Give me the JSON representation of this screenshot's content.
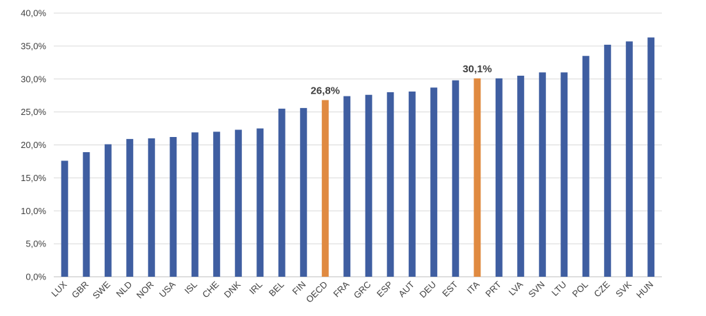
{
  "chart_data": {
    "type": "bar",
    "title": "",
    "xlabel": "",
    "ylabel": "",
    "ylim": [
      0,
      40
    ],
    "ytick_step": 5,
    "ytick_labels": [
      "0,0%",
      "5,0%",
      "10,0%",
      "15,0%",
      "20,0%",
      "25,0%",
      "30,0%",
      "35,0%",
      "40,0%"
    ],
    "grid": true,
    "legend": "none",
    "categories": [
      "LUX",
      "GBR",
      "SWE",
      "NLD",
      "NOR",
      "USA",
      "ISL",
      "CHE",
      "DNK",
      "IRL",
      "BEL",
      "FIN",
      "OECD",
      "FRA",
      "GRC",
      "ESP",
      "AUT",
      "DEU",
      "EST",
      "ITA",
      "PRT",
      "LVA",
      "SVN",
      "LTU",
      "POL",
      "CZE",
      "SVK",
      "HUN"
    ],
    "values": [
      17.6,
      18.9,
      20.1,
      20.9,
      21.0,
      21.2,
      21.9,
      22.0,
      22.3,
      22.5,
      25.5,
      25.6,
      26.8,
      27.4,
      27.6,
      28.0,
      28.1,
      28.7,
      29.8,
      30.1,
      30.1,
      30.5,
      31.0,
      31.0,
      33.5,
      35.2,
      35.7,
      36.3
    ],
    "highlight": [
      "OECD",
      "ITA"
    ],
    "data_labels": {
      "OECD": "26,8%",
      "ITA": "30,1%"
    },
    "colors": {
      "default": "#3f5ea1",
      "highlight": "#e08a41"
    }
  }
}
